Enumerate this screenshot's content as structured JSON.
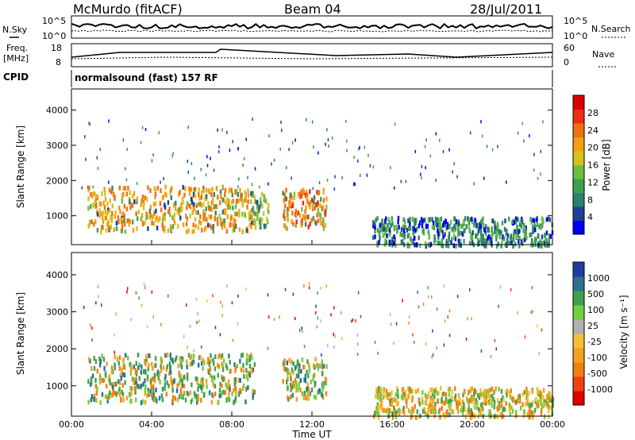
{
  "header": {
    "station": "McMurdo (fitACF)",
    "beam": "Beam 04",
    "date": "28/Jul/2011"
  },
  "top_panels": {
    "nsky_label": "N.Sky",
    "nsky_ticks": [
      "10^5",
      "10^0"
    ],
    "nsearch_label": "N.Search",
    "nsearch_ticks": [
      "10^5",
      "10^0"
    ],
    "freq_label_1": "Freq.",
    "freq_label_2": "[MHz]",
    "freq_ticks": [
      "18",
      "8"
    ],
    "nave_label": "Nave",
    "nave_ticks": [
      "60",
      "0"
    ],
    "cpid_label": "CPID",
    "cpid_text": "normalsound (fast) 157 RF"
  },
  "colors": {
    "power_scale": [
      "#0000ee",
      "#1f3f9a",
      "#2f7f6f",
      "#3f9f4f",
      "#6fbf3f",
      "#d8c020",
      "#f2a010",
      "#f07010",
      "#e83010",
      "#dd0000"
    ],
    "velocity_scale": [
      "#e00000",
      "#ee4010",
      "#f07f10",
      "#f2a020",
      "#f3c030",
      "#b0b0b0",
      "#6fcf3f",
      "#3fa04f",
      "#2f6f8f",
      "#1f3fa0"
    ]
  },
  "chart_data": [
    {
      "type": "heatmap",
      "name": "power",
      "ylabel": "Slant Range [km]",
      "yticks": [
        "1000",
        "2000",
        "3000",
        "4000"
      ],
      "ylim": [
        180,
        4600
      ],
      "xlim": [
        0,
        24
      ],
      "colorbar_label": "Power [dB]",
      "colorbar_ticks": [
        "4",
        "8",
        "12",
        "16",
        "20",
        "24",
        "28"
      ],
      "colorbar_range": [
        0,
        32
      ],
      "patches": [
        {
          "t0": 0.8,
          "t1": 9.1,
          "r0": 600,
          "r1": 1900,
          "level": 20
        },
        {
          "t0": 9.0,
          "t1": 9.8,
          "r0": 700,
          "r1": 1700,
          "level": 14
        },
        {
          "t0": 10.5,
          "t1": 12.7,
          "r0": 700,
          "r1": 1800,
          "level": 24
        },
        {
          "t0": 15.0,
          "t1": 24.0,
          "r0": 200,
          "r1": 1000,
          "level": 10
        }
      ]
    },
    {
      "type": "heatmap",
      "name": "velocity",
      "ylabel": "Slant Range [km]",
      "yticks": [
        "1000",
        "2000",
        "3000",
        "4000"
      ],
      "ylim": [
        180,
        4600
      ],
      "xlim": [
        0,
        24
      ],
      "xticks": [
        "00:00",
        "04:00",
        "08:00",
        "12:00",
        "16:00",
        "20:00",
        "00:00"
      ],
      "xlabel": "Time UT",
      "colorbar_label": "Velocity [m s⁻¹]",
      "colorbar_ticks": [
        "1000",
        "500",
        "100",
        "25",
        "-25",
        "-100",
        "-500",
        "-1000"
      ],
      "patches": [
        {
          "t0": 0.8,
          "t1": 9.1,
          "r0": 600,
          "r1": 1900,
          "level": "100"
        },
        {
          "t0": 10.5,
          "t1": 12.7,
          "r0": 700,
          "r1": 1800,
          "level": "100"
        },
        {
          "t0": 15.0,
          "t1": 24.0,
          "r0": 200,
          "r1": 1000,
          "level": "-100"
        }
      ]
    }
  ]
}
